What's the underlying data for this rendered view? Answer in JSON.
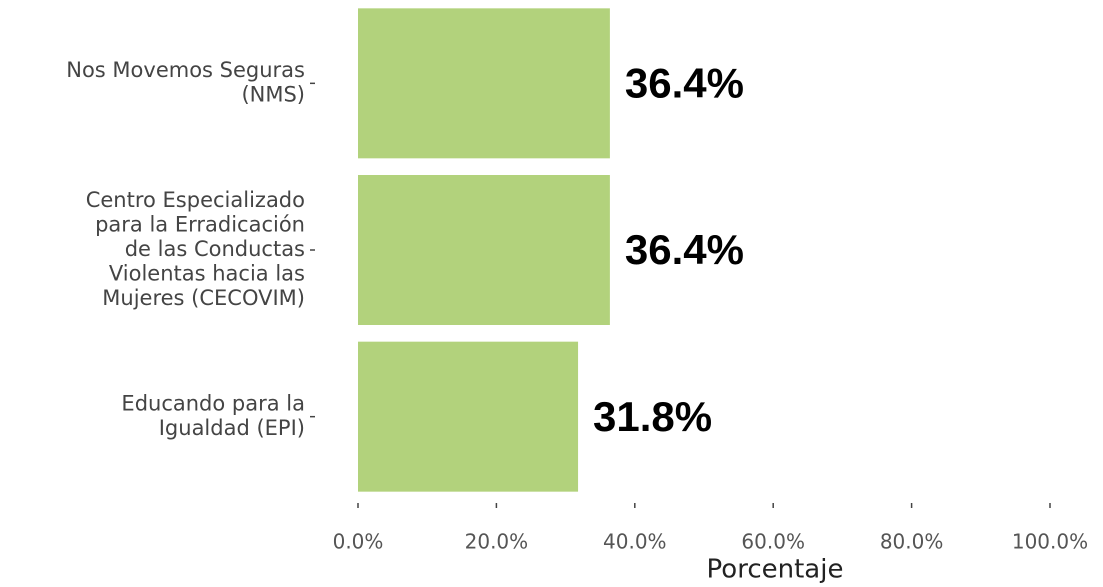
{
  "chart_data": {
    "type": "bar",
    "orientation": "horizontal",
    "categories": [
      "Nos Movemos Seguras\n(NMS)",
      "Centro Especializado\npara la Erradicación\nde las Conductas\nViolentas hacia las\nMujeres (CECOVIM)",
      "Educando para la\nIgualdad (EPI)"
    ],
    "values": [
      36.4,
      36.4,
      31.8
    ],
    "value_labels": [
      "36.4%",
      "36.4%",
      "31.8%"
    ],
    "color": "#b2d27c",
    "xlabel": "Porcentaje",
    "xlim": [
      0,
      100
    ],
    "xticks": [
      {
        "value": 0,
        "label": "0.0%"
      },
      {
        "value": 20,
        "label": "20.0%"
      },
      {
        "value": 40,
        "label": "40.0%"
      },
      {
        "value": 60,
        "label": "60.0%"
      },
      {
        "value": 80,
        "label": "80.0%"
      },
      {
        "value": 100,
        "label": "100.0%"
      }
    ],
    "grid": false
  }
}
